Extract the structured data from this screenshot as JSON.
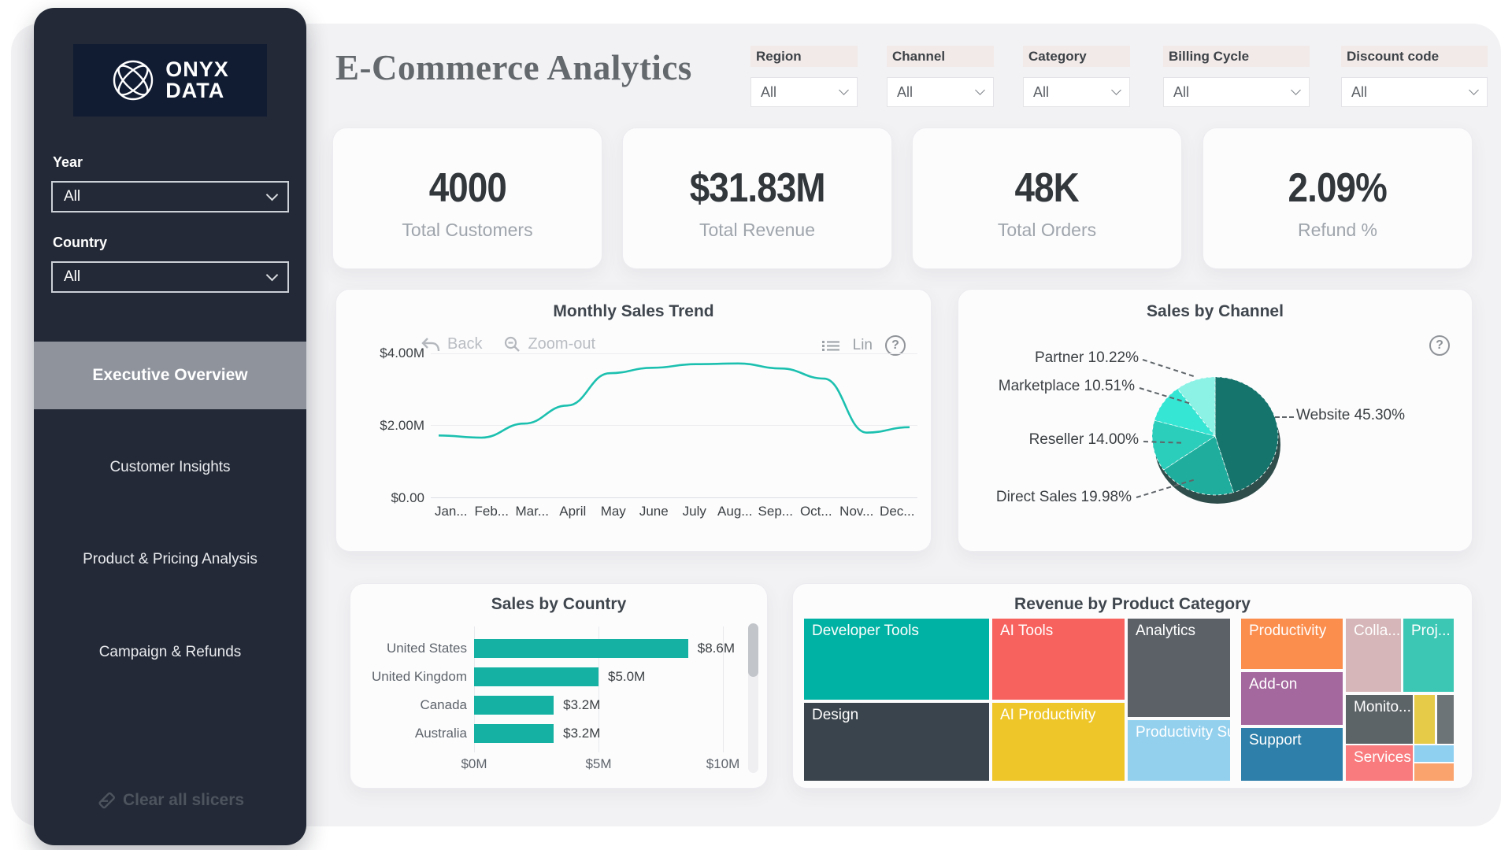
{
  "sidebar": {
    "logo_line1": "ONYX",
    "logo_line2": "DATA",
    "year_label": "Year",
    "year_value": "All",
    "country_label": "Country",
    "country_value": "All",
    "nav": [
      {
        "label": "Executive Overview"
      },
      {
        "label": "Customer Insights"
      },
      {
        "label": "Product & Pricing Analysis"
      },
      {
        "label": "Campaign & Refunds"
      }
    ],
    "clear_slicers": "Clear all slicers"
  },
  "header": {
    "title": "E-Commerce Analytics",
    "filters": [
      {
        "label": "Region",
        "value": "All"
      },
      {
        "label": "Channel",
        "value": "All"
      },
      {
        "label": "Category",
        "value": "All"
      },
      {
        "label": "Billing Cycle",
        "value": "All"
      },
      {
        "label": "Discount code",
        "value": "All"
      }
    ]
  },
  "kpis": [
    {
      "value": "4000",
      "label": "Total Customers"
    },
    {
      "value": "$31.83M",
      "label": "Total Revenue"
    },
    {
      "value": "48K",
      "label": "Total Orders"
    },
    {
      "value": "2.09%",
      "label": "Refund %"
    }
  ],
  "chart_data": [
    {
      "type": "line",
      "title": "Monthly Sales Trend",
      "toolbar": {
        "back": "Back",
        "zoom_out": "Zoom-out",
        "scale": "Lin"
      },
      "x": [
        "Jan...",
        "Feb...",
        "Mar...",
        "April",
        "May",
        "June",
        "July",
        "Aug...",
        "Sep...",
        "Oct...",
        "Nov...",
        "Dec..."
      ],
      "values_musd": [
        1.72,
        1.66,
        2.05,
        2.55,
        3.45,
        3.6,
        3.7,
        3.72,
        3.58,
        3.3,
        1.8,
        1.95
      ],
      "yticks": [
        "$4.00M",
        "$2.00M",
        "$0.00"
      ],
      "ylim": [
        0,
        4
      ],
      "line_color": "#1cc0af",
      "grid": true
    },
    {
      "type": "pie",
      "title": "Sales by Channel",
      "slices": [
        {
          "label": "Website",
          "pct": 45.3,
          "display": "Website 45.30%",
          "color": "#15756d"
        },
        {
          "label": "Direct Sales",
          "pct": 19.98,
          "display": "Direct Sales 19.98%",
          "color": "#1fae9d"
        },
        {
          "label": "Reseller",
          "pct": 14.0,
          "display": "Reseller 14.00%",
          "color": "#2bcdbb"
        },
        {
          "label": "Marketplace",
          "pct": 10.51,
          "display": "Marketplace 10.51%",
          "color": "#35e6d4"
        },
        {
          "label": "Partner",
          "pct": 10.22,
          "display": "Partner 10.22%",
          "color": "#8df2e6"
        }
      ],
      "legend_position": "callout-labels"
    },
    {
      "type": "bar",
      "title": "Sales by Country",
      "categories": [
        "United States",
        "United Kingdom",
        "Canada",
        "Australia"
      ],
      "values_musd": [
        8.6,
        5.0,
        3.2,
        3.2
      ],
      "value_labels": [
        "$8.6M",
        "$5.0M",
        "$3.2M",
        "$3.2M"
      ],
      "xticks": [
        "$0M",
        "$5M",
        "$10M"
      ],
      "xlim": [
        0,
        10
      ],
      "bar_color": "#15b2a3"
    },
    {
      "type": "treemap",
      "title": "Revenue by Product Category",
      "cells": [
        {
          "label": "Developer Tools",
          "color": "#00b2a3"
        },
        {
          "label": "Design",
          "color": "#3a444c"
        },
        {
          "label": "AI Tools",
          "color": "#f8625e"
        },
        {
          "label": "AI Productivity",
          "color": "#eec62a"
        },
        {
          "label": "Analytics",
          "color": "#5b6167"
        },
        {
          "label": "Productivity Su...",
          "color": "#93d0ee"
        },
        {
          "label": "Productivity",
          "color": "#fb8d4d"
        },
        {
          "label": "Add-on",
          "color": "#a4679e"
        },
        {
          "label": "Support",
          "color": "#2e7fa9"
        },
        {
          "label": "Colla...",
          "color": "#d6b6b8"
        },
        {
          "label": "Proj...",
          "color": "#3cc7b5"
        },
        {
          "label": "Monito...",
          "color": "#5d6468"
        },
        {
          "label": "",
          "color": "#e6cb49"
        },
        {
          "label": "",
          "color": "#6d7477"
        },
        {
          "label": "Services",
          "color": "#f97b7e"
        },
        {
          "label": "",
          "color": "#8fd0f0"
        },
        {
          "label": "",
          "color": "#fba36d"
        }
      ]
    }
  ],
  "colors": {
    "sidebar_bg": "#232936",
    "logo_bg": "#111c33",
    "panel_bg": "#f2f2f4",
    "accent_teal": "#15b2a3",
    "nav_active_bg": "#8e939c"
  }
}
